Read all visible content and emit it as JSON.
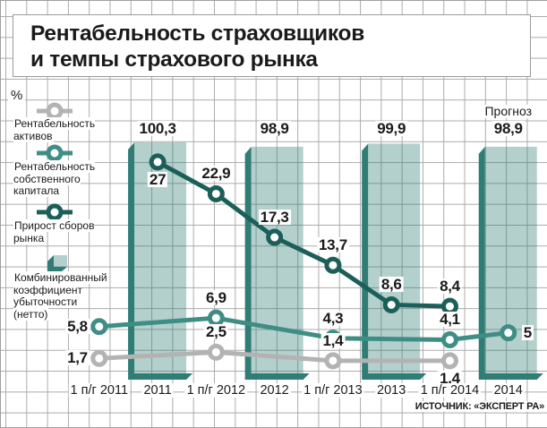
{
  "title_line1": "Рентабельность страховщиков",
  "title_line2": "и темпы страхового рынка",
  "y_unit": "%",
  "source": "ИСТОЧНИК: «ЭКСПЕРТ РА»",
  "legend": {
    "items": [
      {
        "label": "Рентабельность\nактивов"
      },
      {
        "label": "Рентабельность\nсобственного\nкапитала"
      },
      {
        "label": "Прирост сборов\nрынка"
      },
      {
        "label": "Комбинированный\nкоэффициент\nубыточности\n(нетто)"
      }
    ]
  },
  "colors": {
    "dark_teal": "#1b5f58",
    "teal": "#3f8e85",
    "gray": "#b3b3b3",
    "bar_edge": "#2f7d75",
    "grid": "#ababab"
  },
  "chart_data": [
    {
      "type": "bar",
      "name": "Комбинированный коэффициент убыточности (нетто)",
      "categories": [
        "1 п/г 2011",
        "2011",
        "1 п/г 2012",
        "2012",
        "1 п/г 2013",
        "2013",
        "1 п/г 2014",
        "2014"
      ],
      "color": "#2f7d75",
      "fill_alpha": 0.36,
      "axis_note": "bars not zero-based, values in %",
      "points": [
        {
          "category": "2011",
          "cat_index": 1,
          "value": 100.3,
          "label": "100,3"
        },
        {
          "category": "2012",
          "cat_index": 3,
          "value": 98.9,
          "label": "98,9"
        },
        {
          "category": "2013",
          "cat_index": 5,
          "value": 99.9,
          "label": "99,9"
        },
        {
          "category": "2014",
          "cat_index": 7,
          "value": 98.9,
          "label": "98,9",
          "annotation": "Прогноз"
        }
      ]
    },
    {
      "type": "line",
      "ylabel": "%",
      "ylim": [
        0,
        30
      ],
      "grid": true,
      "legend_position": "left",
      "categories": [
        "1 п/г 2011",
        "2011",
        "1 п/г 2012",
        "2012",
        "1 п/г 2013",
        "2013",
        "1 п/г 2014",
        "2014"
      ],
      "series": [
        {
          "name": "Рентабельность активов",
          "color": "#b3b3b3",
          "points": [
            {
              "cat_index": 0,
              "value": 1.7,
              "label": "1,7",
              "label_pos": "left"
            },
            {
              "cat_index": 2,
              "value": 2.5,
              "label": "2,5",
              "label_pos": "above"
            },
            {
              "cat_index": 4,
              "value": 1.4,
              "label": "1,4",
              "label_pos": "above"
            },
            {
              "cat_index": 6,
              "value": 1.4,
              "label": "1,4",
              "label_pos": "below"
            }
          ]
        },
        {
          "name": "Рентабельность собственного капитала",
          "color": "#3f8e85",
          "points": [
            {
              "cat_index": 0,
              "value": 5.8,
              "label": "5,8",
              "label_pos": "left"
            },
            {
              "cat_index": 2,
              "value": 6.9,
              "label": "6,9",
              "label_pos": "above"
            },
            {
              "cat_index": 4,
              "value": 4.3,
              "label": "4,3",
              "label_pos": "above"
            },
            {
              "cat_index": 6,
              "value": 4.1,
              "label": "4,1",
              "label_pos": "above"
            },
            {
              "cat_index": 7,
              "value": 5,
              "label": "5",
              "label_pos": "right"
            }
          ]
        },
        {
          "name": "Прирост сборов рынка",
          "color": "#1b5f58",
          "points": [
            {
              "cat_index": 1,
              "value": 27,
              "label": "27",
              "label_pos": "below"
            },
            {
              "cat_index": 2,
              "value": 22.9,
              "label": "22,9",
              "label_pos": "above"
            },
            {
              "cat_index": 3,
              "value": 17.3,
              "label": "17,3",
              "label_pos": "above"
            },
            {
              "cat_index": 4,
              "value": 13.7,
              "label": "13,7",
              "label_pos": "above"
            },
            {
              "cat_index": 5,
              "value": 8.6,
              "label": "8,6",
              "label_pos": "above"
            },
            {
              "cat_index": 6,
              "value": 8.4,
              "label": "8,4",
              "label_pos": "above"
            }
          ]
        }
      ]
    }
  ]
}
